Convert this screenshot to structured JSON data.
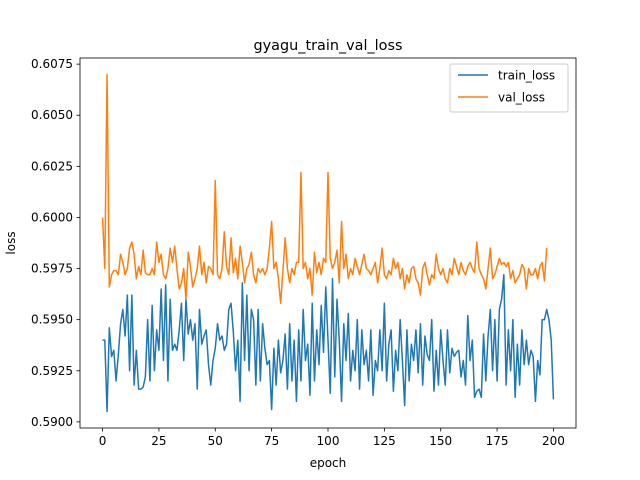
{
  "chart_data": {
    "type": "line",
    "title": "gyagu_train_val_loss",
    "xlabel": "epoch",
    "ylabel": "loss",
    "xlim": [
      -10,
      210
    ],
    "ylim": [
      0.5897,
      0.6078
    ],
    "xticks": [
      0,
      25,
      50,
      75,
      100,
      125,
      150,
      175,
      200
    ],
    "xtick_labels": [
      "0",
      "25",
      "50",
      "75",
      "100",
      "125",
      "150",
      "175",
      "200"
    ],
    "yticks": [
      0.59,
      0.5925,
      0.595,
      0.5975,
      0.6,
      0.6025,
      0.605,
      0.6075
    ],
    "ytick_labels": [
      "0.5900",
      "0.5925",
      "0.5950",
      "0.5975",
      "0.6000",
      "0.6025",
      "0.6050",
      "0.6075"
    ],
    "grid": false,
    "legend_position": "top-right",
    "series": [
      {
        "name": "train_loss",
        "color": "#1f77b4",
        "values": [
          0.594,
          0.594,
          0.5905,
          0.5946,
          0.5932,
          0.5935,
          0.592,
          0.5933,
          0.5948,
          0.5955,
          0.5942,
          0.5962,
          0.5925,
          0.5962,
          0.5918,
          0.5935,
          0.5916,
          0.5916,
          0.5917,
          0.5922,
          0.595,
          0.592,
          0.5957,
          0.5925,
          0.5945,
          0.5935,
          0.5965,
          0.593,
          0.5967,
          0.592,
          0.596,
          0.5935,
          0.5938,
          0.5935,
          0.5945,
          0.5958,
          0.593,
          0.596,
          0.5943,
          0.595,
          0.594,
          0.5948,
          0.5916,
          0.5955,
          0.5938,
          0.5942,
          0.5945,
          0.5928,
          0.5918,
          0.593,
          0.5936,
          0.5948,
          0.594,
          0.5942,
          0.5935,
          0.5938,
          0.5955,
          0.5958,
          0.5944,
          0.5925,
          0.594,
          0.591,
          0.5968,
          0.593,
          0.5962,
          0.5925,
          0.5955,
          0.595,
          0.5918,
          0.5955,
          0.592,
          0.5948,
          0.5936,
          0.5928,
          0.593,
          0.5906,
          0.5936,
          0.5918,
          0.594,
          0.5924,
          0.593,
          0.5943,
          0.5916,
          0.5948,
          0.592,
          0.594,
          0.591,
          0.5945,
          0.592,
          0.5955,
          0.593,
          0.5938,
          0.5913,
          0.5958,
          0.592,
          0.5945,
          0.5928,
          0.5957,
          0.5934,
          0.5966,
          0.594,
          0.5914,
          0.597,
          0.5922,
          0.596,
          0.594,
          0.591,
          0.5948,
          0.593,
          0.5953,
          0.592,
          0.5935,
          0.5925,
          0.595,
          0.5916,
          0.5945,
          0.5928,
          0.5935,
          0.592,
          0.5945,
          0.5913,
          0.593,
          0.5925,
          0.5945,
          0.5925,
          0.5958,
          0.592,
          0.5938,
          0.5945,
          0.5915,
          0.5935,
          0.5925,
          0.595,
          0.593,
          0.5908,
          0.5945,
          0.592,
          0.5938,
          0.593,
          0.5945,
          0.5924,
          0.5948,
          0.5918,
          0.5942,
          0.5933,
          0.593,
          0.595,
          0.5915,
          0.5935,
          0.5918,
          0.5945,
          0.593,
          0.5918,
          0.5945,
          0.5924,
          0.5936,
          0.5932,
          0.5934,
          0.5935,
          0.5922,
          0.593,
          0.5918,
          0.5952,
          0.593,
          0.594,
          0.5912,
          0.5915,
          0.5916,
          0.5912,
          0.5943,
          0.592,
          0.5942,
          0.5955,
          0.5925,
          0.595,
          0.592,
          0.5955,
          0.596,
          0.5972,
          0.5918,
          0.5945,
          0.5925,
          0.595,
          0.5912,
          0.5938,
          0.5918,
          0.5945,
          0.5928,
          0.594,
          0.5928,
          0.5935,
          0.5932,
          0.591,
          0.593,
          0.5923,
          0.595,
          0.595,
          0.5955,
          0.595,
          0.594,
          0.5911
        ]
      },
      {
        "name": "val_loss",
        "color": "#ff7f0e",
        "values": [
          0.6,
          0.5975,
          0.607,
          0.5966,
          0.5972,
          0.5974,
          0.5974,
          0.5972,
          0.5982,
          0.5978,
          0.5972,
          0.5975,
          0.5985,
          0.5988,
          0.5982,
          0.597,
          0.5976,
          0.5972,
          0.5984,
          0.5973,
          0.5972,
          0.5972,
          0.5975,
          0.5972,
          0.5988,
          0.5978,
          0.5982,
          0.5972,
          0.597,
          0.5975,
          0.5985,
          0.5978,
          0.5986,
          0.5975,
          0.5965,
          0.5968,
          0.5975,
          0.596,
          0.5983,
          0.5976,
          0.5966,
          0.597,
          0.5975,
          0.5986,
          0.5972,
          0.5978,
          0.5968,
          0.5976,
          0.5975,
          0.5972,
          0.6018,
          0.5972,
          0.597,
          0.5975,
          0.5993,
          0.5976,
          0.5972,
          0.599,
          0.5973,
          0.598,
          0.597,
          0.5986,
          0.5978,
          0.5968,
          0.5975,
          0.5977,
          0.5983,
          0.5972,
          0.5968,
          0.5975,
          0.5973,
          0.5975,
          0.5972,
          0.5975,
          0.5985,
          0.5998,
          0.5975,
          0.5978,
          0.597,
          0.5958,
          0.5974,
          0.599,
          0.5975,
          0.5968,
          0.5975,
          0.5972,
          0.5978,
          0.5978,
          0.6022,
          0.5975,
          0.5978,
          0.597,
          0.5975,
          0.5962,
          0.5983,
          0.5973,
          0.5978,
          0.5972,
          0.598,
          0.5978,
          0.6022,
          0.598,
          0.5975,
          0.5978,
          0.5984,
          0.5968,
          0.5998,
          0.5975,
          0.5982,
          0.597,
          0.5975,
          0.5972,
          0.598,
          0.5976,
          0.5972,
          0.5977,
          0.5982,
          0.5975,
          0.5974,
          0.5972,
          0.5975,
          0.5978,
          0.5968,
          0.5975,
          0.5985,
          0.5972,
          0.597,
          0.5974,
          0.5972,
          0.598,
          0.5975,
          0.5978,
          0.597,
          0.5975,
          0.5965,
          0.5972,
          0.5968,
          0.5975,
          0.5976,
          0.597,
          0.5968,
          0.5962,
          0.5975,
          0.5978,
          0.5972,
          0.5967,
          0.5972,
          0.597,
          0.5982,
          0.5975,
          0.5972,
          0.5975,
          0.597,
          0.5968,
          0.5975,
          0.5972,
          0.598,
          0.5976,
          0.5972,
          0.5978,
          0.5974,
          0.5972,
          0.5976,
          0.5978,
          0.5975,
          0.5973,
          0.5988,
          0.5975,
          0.5972,
          0.597,
          0.5965,
          0.5975,
          0.5985,
          0.597,
          0.5972,
          0.5976,
          0.598,
          0.5977,
          0.5978,
          0.5976,
          0.5978,
          0.597,
          0.5974,
          0.5968,
          0.597,
          0.5972,
          0.5977,
          0.5975,
          0.5965,
          0.5975,
          0.5972,
          0.5972,
          0.5975,
          0.597,
          0.5976,
          0.5978,
          0.5969,
          0.5985
        ]
      }
    ]
  }
}
